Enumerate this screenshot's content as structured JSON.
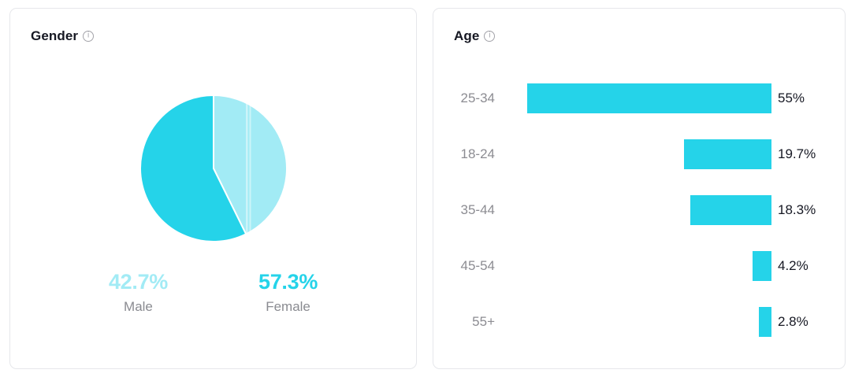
{
  "colors": {
    "accent_cyan": "#25d3e9",
    "light_cyan": "#a2ebf5",
    "pie_stripe": "rgba(255,255,255,0.45)",
    "text_dark": "#161823",
    "text_gray": "#8a8b91",
    "card_border": "#e6e7eb"
  },
  "gender_card": {
    "title": "Gender",
    "segments": [
      {
        "label": "Male",
        "value": "42.7%",
        "pct": 42.7,
        "color": "#a2ebf5"
      },
      {
        "label": "Female",
        "value": "57.3%",
        "pct": 57.3,
        "color": "#25d3e9"
      }
    ]
  },
  "age_card": {
    "title": "Age",
    "rows": [
      {
        "label": "25-34",
        "value": "55%",
        "pct": 55
      },
      {
        "label": "18-24",
        "value": "19.7%",
        "pct": 19.7
      },
      {
        "label": "35-44",
        "value": "18.3%",
        "pct": 18.3
      },
      {
        "label": "45-54",
        "value": "4.2%",
        "pct": 4.2
      },
      {
        "label": "55+",
        "value": "2.8%",
        "pct": 2.8
      }
    ]
  },
  "chart_data": [
    {
      "type": "pie",
      "title": "Gender",
      "labels": [
        "Male",
        "Female"
      ],
      "values": [
        42.7,
        57.3
      ],
      "unit": "%",
      "colors": [
        "#a2ebf5",
        "#25d3e9"
      ],
      "start_angle": "12 o'clock, clockwise, Male first",
      "legend_position": "bottom"
    },
    {
      "type": "bar",
      "title": "Age",
      "orientation": "horizontal",
      "bar_alignment": "right",
      "categories": [
        "25-34",
        "18-24",
        "35-44",
        "45-54",
        "55+"
      ],
      "values": [
        55,
        19.7,
        18.3,
        4.2,
        2.8
      ],
      "value_labels": [
        "55%",
        "19.7%",
        "18.3%",
        "4.2%",
        "2.8%"
      ],
      "unit": "%",
      "xlim": [
        0,
        55
      ],
      "grid": false,
      "bar_color": "#25d3e9"
    }
  ]
}
